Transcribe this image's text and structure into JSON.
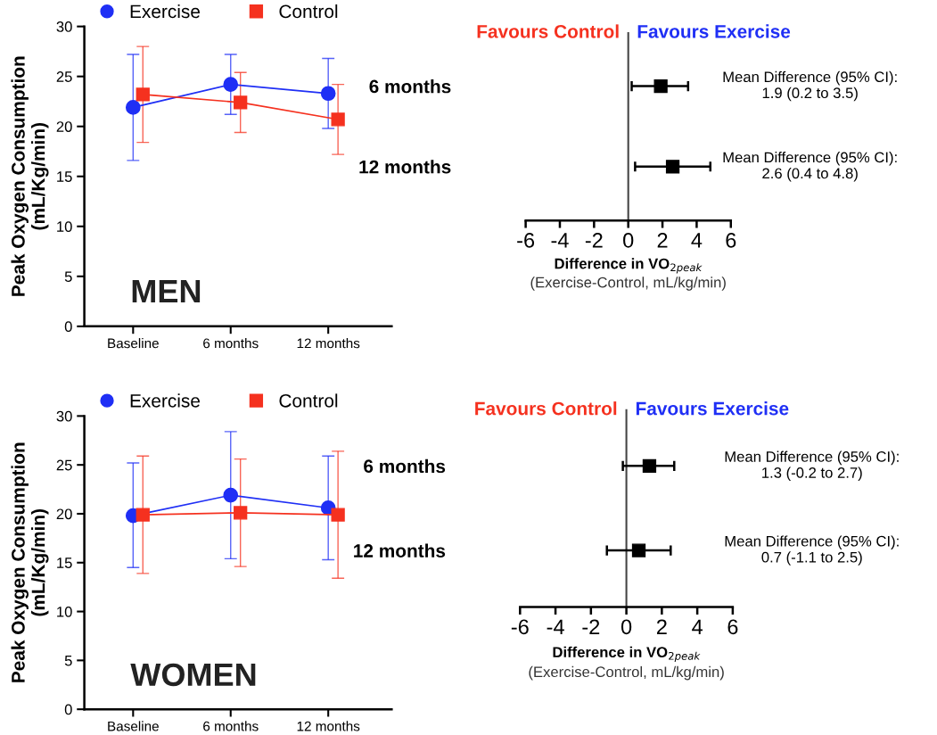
{
  "chart_data": [
    {
      "type": "line",
      "categories": [
        "Baseline",
        "6 months",
        "12 months"
      ],
      "ylabel": "Peak Oxygen Consumption\n(mL/Kg/min)",
      "ylim": [
        0,
        30
      ],
      "yticks": [
        0,
        5,
        10,
        15,
        20,
        25,
        30
      ],
      "grid": false,
      "legend": "top",
      "annotations": [
        "MEN"
      ],
      "series": [
        {
          "name": "Exercise",
          "color": "#1f2ff5",
          "marker": "circle",
          "values": [
            21.9,
            24.2,
            23.3
          ],
          "errors": [
            5.3,
            3.0,
            3.5
          ]
        },
        {
          "name": "Control",
          "color": "#f5311f",
          "marker": "square",
          "values": [
            23.2,
            22.4,
            20.7
          ],
          "errors": [
            4.8,
            3.0,
            3.5
          ]
        }
      ]
    },
    {
      "type": "scatter",
      "orientation": "horizontal",
      "categories": [
        "6 months",
        "12 months"
      ],
      "xlabel": "Difference in VO$_{2peak}$\n(Exercise-Control, mL/kg/min)",
      "xlim": [
        -6,
        6
      ],
      "xticks": [
        -6,
        -4,
        -2,
        0,
        2,
        4,
        6
      ],
      "grid": false,
      "marker": "square",
      "ref_lines": [
        {
          "axis": "x",
          "value": 0,
          "color": "#444444"
        }
      ],
      "annotations": [
        "Favours Control",
        "Favours Exercise",
        "Mean Difference (95% CI):\n1.9 (0.2 to 3.5)",
        "Mean Difference (95% CI):\n2.6 (0.4 to 4.8)"
      ],
      "series": [
        {
          "color": "#000000",
          "values": [
            1.9,
            2.6
          ],
          "errors": [
            [
              0.2,
              3.5
            ],
            [
              0.4,
              4.8
            ]
          ]
        }
      ]
    },
    {
      "type": "line",
      "categories": [
        "Baseline",
        "6 months",
        "12 months"
      ],
      "ylabel": "Peak Oxygen Consumption\n(mL/Kg/min)",
      "ylim": [
        0,
        30
      ],
      "yticks": [
        0,
        5,
        10,
        15,
        20,
        25,
        30
      ],
      "grid": false,
      "legend": "top",
      "annotations": [
        "WOMEN"
      ],
      "series": [
        {
          "name": "Exercise",
          "color": "#1f2ff5",
          "marker": "circle",
          "values": [
            19.8,
            21.9,
            20.6
          ],
          "errors": [
            [
              14.5,
              25.2
            ],
            [
              15.4,
              28.4
            ],
            [
              15.3,
              25.9
            ]
          ]
        },
        {
          "name": "Control",
          "color": "#f5311f",
          "marker": "square",
          "values": [
            19.9,
            20.1,
            19.9
          ],
          "errors": [
            [
              13.9,
              25.9
            ],
            [
              14.6,
              25.6
            ],
            [
              13.4,
              26.4
            ]
          ]
        }
      ]
    },
    {
      "type": "scatter",
      "orientation": "horizontal",
      "categories": [
        "6 months",
        "12 months"
      ],
      "xlabel": "Difference in VO$_{2peak}$\n(Exercise-Control, mL/kg/min)",
      "xlim": [
        -6,
        6
      ],
      "xticks": [
        -6,
        -4,
        -2,
        0,
        2,
        4,
        6
      ],
      "grid": false,
      "marker": "square",
      "ref_lines": [
        {
          "axis": "x",
          "value": 0,
          "color": "#444444"
        }
      ],
      "annotations": [
        "Favours Control",
        "Favours Exercise",
        "Mean Difference (95% CI):\n1.3 (-0.2 to 2.7)",
        "Mean Difference (95% CI):\n0.7 (-1.1 to 2.5)"
      ],
      "series": [
        {
          "color": "#000000",
          "values": [
            1.3,
            0.7
          ],
          "errors": [
            [
              -0.2,
              2.7
            ],
            [
              -1.1,
              2.5
            ]
          ]
        }
      ]
    }
  ]
}
